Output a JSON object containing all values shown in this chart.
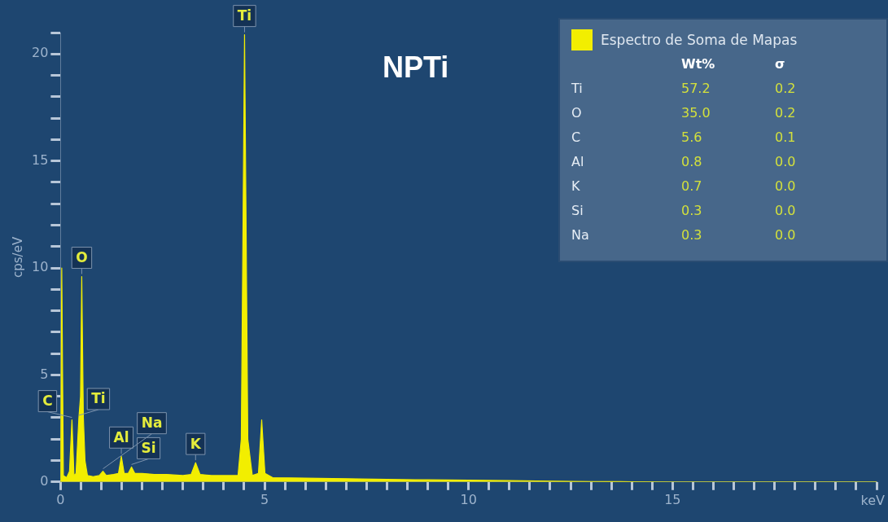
{
  "chart_data": {
    "type": "area",
    "title": "NPTi",
    "xlabel": "keV",
    "ylabel": "cps/eV",
    "x": [
      0,
      0.03,
      0.07,
      0.15,
      0.22,
      0.28,
      0.33,
      0.38,
      0.45,
      0.49,
      0.52,
      0.56,
      0.6,
      0.66,
      0.8,
      0.95,
      1.04,
      1.12,
      1.3,
      1.42,
      1.49,
      1.56,
      1.66,
      1.74,
      1.82,
      2.0,
      2.3,
      2.6,
      3.0,
      3.2,
      3.31,
      3.42,
      3.7,
      4.1,
      4.35,
      4.43,
      4.51,
      4.59,
      4.7,
      4.85,
      4.93,
      5.01,
      5.2,
      6,
      7,
      8,
      9,
      10,
      11,
      12,
      13,
      14,
      15,
      20
    ],
    "series": [
      {
        "name": "Espectro de Soma de Mapas",
        "color": "#f2ee00",
        "values": [
          0,
          10.0,
          0.3,
          0.2,
          0.5,
          2.9,
          0.3,
          0.4,
          3.0,
          4.0,
          9.6,
          3.0,
          1.0,
          0.3,
          0.25,
          0.3,
          0.5,
          0.3,
          0.35,
          0.4,
          1.2,
          0.4,
          0.4,
          0.7,
          0.4,
          0.4,
          0.35,
          0.35,
          0.3,
          0.35,
          0.9,
          0.35,
          0.3,
          0.3,
          0.3,
          2.0,
          20.9,
          2.0,
          0.3,
          0.4,
          2.9,
          0.4,
          0.2,
          0.18,
          0.15,
          0.12,
          0.1,
          0.08,
          0.06,
          0.04,
          0.02,
          0.01,
          0,
          0
        ]
      }
    ],
    "xlim": [
      0,
      20
    ],
    "ylim": [
      0,
      21
    ],
    "xticks": [
      0,
      {
        "value": 0.5,
        "label": null
      },
      {
        "value": 1,
        "label": null
      },
      {
        "value": 1.5,
        "label": null
      },
      {
        "value": 2,
        "label": null
      },
      {
        "value": 2.5,
        "label": null
      },
      {
        "value": 3,
        "label": null
      },
      {
        "value": 3.5,
        "label": null
      },
      {
        "value": 4,
        "label": null
      },
      {
        "value": 4.5,
        "label": null
      },
      5,
      {
        "value": 5.5,
        "label": null
      },
      {
        "value": 6,
        "label": null
      },
      {
        "value": 6.5,
        "label": null
      },
      {
        "value": 7,
        "label": null
      },
      {
        "value": 7.5,
        "label": null
      },
      {
        "value": 8,
        "label": null
      },
      {
        "value": 8.5,
        "label": null
      },
      {
        "value": 9,
        "label": null
      },
      {
        "value": 9.5,
        "label": null
      },
      10,
      {
        "value": 10.5,
        "label": null
      },
      {
        "value": 11,
        "label": null
      },
      {
        "value": 11.5,
        "label": null
      },
      {
        "value": 12,
        "label": null
      },
      {
        "value": 12.5,
        "label": null
      },
      {
        "value": 13,
        "label": null
      },
      {
        "value": 13.5,
        "label": null
      },
      {
        "value": 14,
        "label": null
      },
      {
        "value": 14.5,
        "label": null
      },
      15,
      {
        "value": 15.5,
        "label": null
      },
      {
        "value": 16,
        "label": null
      },
      {
        "value": 16.5,
        "label": null
      },
      {
        "value": 17,
        "label": null
      },
      {
        "value": 17.5,
        "label": null
      },
      {
        "value": 18,
        "label": null
      },
      {
        "value": 18.5,
        "label": null
      },
      {
        "value": 19,
        "label": null
      },
      {
        "value": 19.5,
        "label": null
      },
      {
        "value": 20,
        "label": null
      }
    ],
    "yticks": [
      0,
      {
        "value": 1,
        "label": null
      },
      {
        "value": 2,
        "label": null
      },
      {
        "value": 3,
        "label": null
      },
      {
        "value": 4,
        "label": null
      },
      5,
      {
        "value": 6,
        "label": null
      },
      {
        "value": 7,
        "label": null
      },
      {
        "value": 8,
        "label": null
      },
      {
        "value": 9,
        "label": null
      },
      10,
      {
        "value": 11,
        "label": null
      },
      {
        "value": 12,
        "label": null
      },
      {
        "value": 13,
        "label": null
      },
      {
        "value": 14,
        "label": null
      },
      15,
      {
        "value": 16,
        "label": null
      },
      {
        "value": 17,
        "label": null
      },
      {
        "value": 18,
        "label": null
      },
      {
        "value": 19,
        "label": null
      },
      20,
      {
        "value": 21,
        "label": null
      }
    ],
    "legend": "top right",
    "grid": false,
    "annotations": [
      {
        "text": "Ti",
        "x": 4.51,
        "y": 20.9
      },
      {
        "text": "O",
        "x": 0.52,
        "y": 9.6
      },
      {
        "text": "Ti",
        "x": 0.45,
        "y": 3.0
      },
      {
        "text": "C",
        "x": 0.28,
        "y": 2.9
      },
      {
        "text": "Al",
        "x": 1.49,
        "y": 1.2
      },
      {
        "text": "Si",
        "x": 1.74,
        "y": 0.7
      },
      {
        "text": "Na",
        "x": 1.04,
        "y": 0.5
      },
      {
        "text": "K",
        "x": 3.31,
        "y": 0.9
      },
      "Wt%",
      "σ",
      "Ti",
      "57.2",
      "0.2",
      "O",
      "35.0",
      "0.2",
      "C",
      "5.6",
      "0.1",
      "Al",
      "0.8",
      "0.0",
      "K",
      "0.7",
      "0.0",
      "Si",
      "0.3",
      "0.0",
      "Na",
      "0.3",
      "0.0"
    ]
  }
}
